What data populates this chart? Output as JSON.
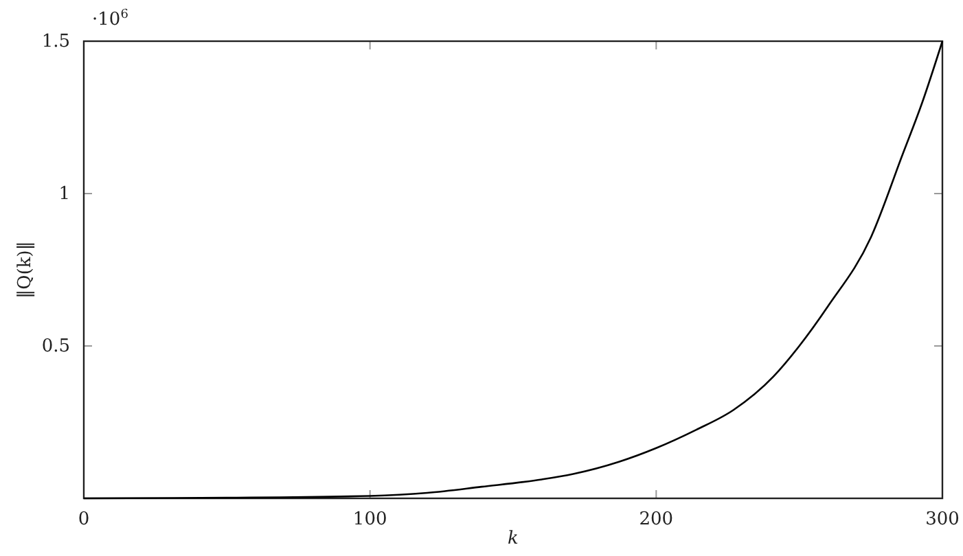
{
  "chart_data": {
    "type": "line",
    "xlabel": "k",
    "ylabel": "‖Q(k)‖",
    "annotations": [
      "·10$^{6}$"
    ],
    "x": [
      0,
      50,
      100,
      120,
      139,
      160,
      171,
      187,
      200,
      214,
      227,
      241,
      250,
      260,
      275,
      286,
      293,
      300
    ],
    "series": [
      {
        "color": "#000000",
        "values": [
          0,
          0.002,
          0.008,
          0.018,
          0.038,
          0.062,
          0.08,
          0.12,
          0.165,
          0.225,
          0.29,
          0.4,
          0.5,
          0.63,
          0.856,
          1.126,
          1.3,
          1.5
        ]
      }
    ],
    "xlim": [
      0,
      300
    ],
    "xticks": [
      0,
      100,
      200,
      300
    ],
    "ylim": [
      0,
      1.5
    ],
    "yticks": [
      0.5,
      1,
      1.5
    ],
    "marker": "none",
    "line_style": "solid"
  }
}
